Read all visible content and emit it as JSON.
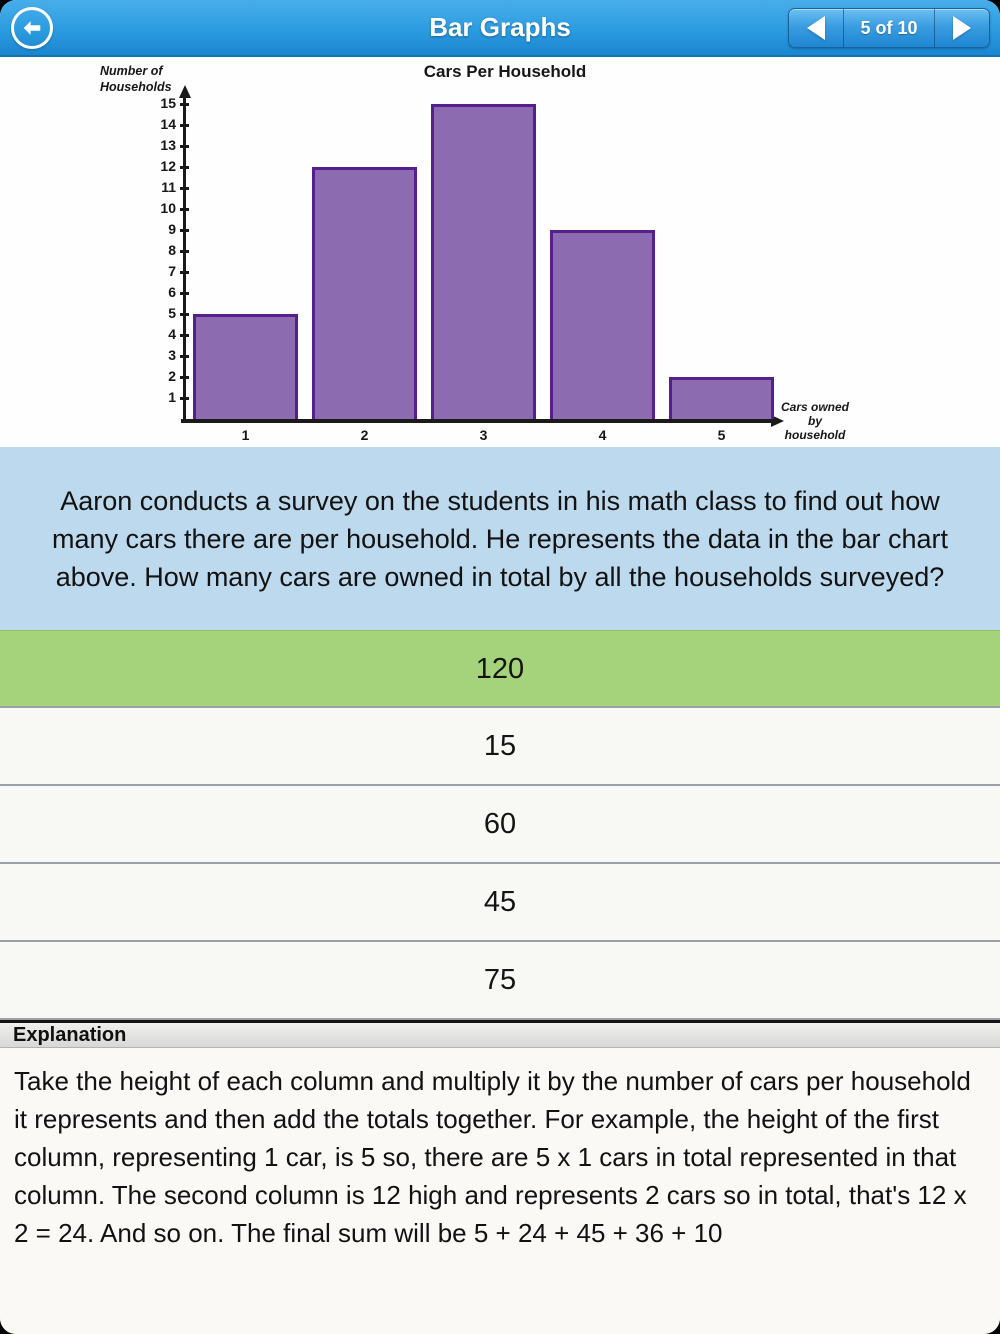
{
  "header": {
    "title": "Bar Graphs",
    "pager": {
      "label": "5 of 10"
    }
  },
  "chart_data": {
    "type": "bar",
    "title": "Cars Per Household",
    "ylabel": "Number of\nHouseholds",
    "xlabel": "Cars owned\nby\nhousehold",
    "categories": [
      "1",
      "2",
      "3",
      "4",
      "5"
    ],
    "values": [
      5,
      12,
      15,
      9,
      2
    ],
    "ylim": [
      0,
      15
    ],
    "ytick_step": 1,
    "grid": false,
    "legend": false,
    "bar_fill": "#8c6bb0",
    "bar_border": "#55208c"
  },
  "question": {
    "text": "Aaron conducts a survey on the students in his math class to find out how many cars there are per household. He represents the data in the bar chart above. How many cars are owned in total by all the households surveyed?"
  },
  "answers": [
    {
      "label": "120",
      "state": "correct"
    },
    {
      "label": "15",
      "state": "normal"
    },
    {
      "label": "60",
      "state": "normal"
    },
    {
      "label": "45",
      "state": "normal"
    },
    {
      "label": "75",
      "state": "normal"
    }
  ],
  "explanation": {
    "heading": "Explanation",
    "text": "Take the height of each column and multiply it by the number of cars per household it represents and then add the totals together. For example, the height of the first column, representing 1 car, is 5 so, there are 5 x 1 cars in total represented in that column. The second column is 12 high and represents 2 cars so in total, that's 12 x 2 = 24. And so on. The final sum will be 5 + 24 + 45 + 36 + 10"
  },
  "colors": {
    "header-blue": "#2b9ce0",
    "header-blue-light": "#49aeea",
    "header-blue-dark": "#1b85d0",
    "question-blue": "#bcd9ed",
    "correct-green": "#a5d37b",
    "row-bg": "#f8f8f5",
    "row-border": "#99a1a8",
    "page-bg": "#faf9f6"
  }
}
